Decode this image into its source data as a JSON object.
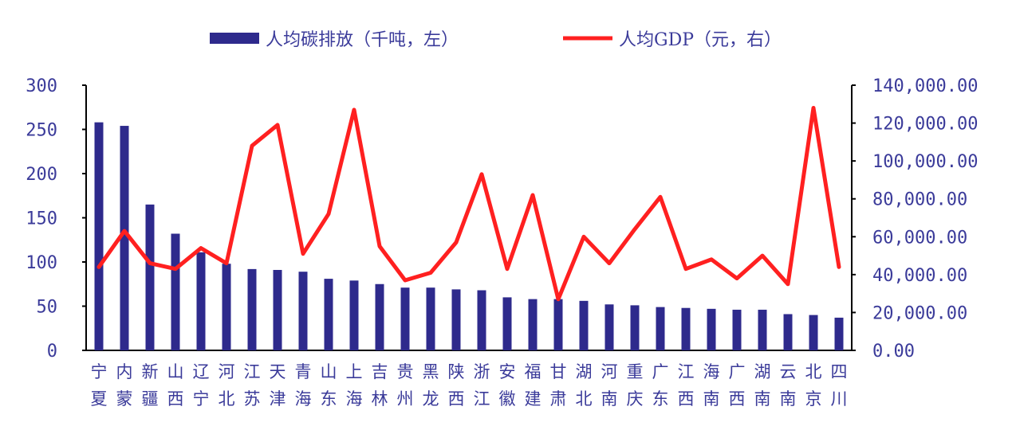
{
  "chart_data": {
    "type": "bar+line",
    "legend": {
      "position": "top",
      "bar_label": "人均碳排放（千吨，左）",
      "line_label": "人均GDP（元，右）"
    },
    "categories": [
      "宁夏",
      "内蒙",
      "新疆",
      "山西",
      "辽宁",
      "河北",
      "江苏",
      "天津",
      "青海",
      "山东",
      "上海",
      "吉林",
      "贵州",
      "黑龙",
      "陕西",
      "浙江",
      "安徽",
      "福建",
      "甘肃",
      "湖北",
      "河南",
      "重庆",
      "广东",
      "江西",
      "海南",
      "广西",
      "湖南",
      "云南",
      "北京",
      "四川"
    ],
    "series": [
      {
        "name": "人均碳排放（千吨，左）",
        "type": "bar",
        "axis": "left",
        "color": "#2e2a8c",
        "values": [
          258,
          254,
          165,
          132,
          111,
          98,
          92,
          91,
          89,
          81,
          79,
          75,
          71,
          71,
          69,
          68,
          60,
          58,
          58,
          56,
          52,
          51,
          49,
          48,
          47,
          46,
          46,
          41,
          40,
          37
        ]
      },
      {
        "name": "人均GDP（元，右）",
        "type": "line",
        "axis": "right",
        "color": "#ff2020",
        "values": [
          44000,
          63000,
          46000,
          43000,
          54000,
          46000,
          108000,
          119000,
          51000,
          72000,
          127000,
          55000,
          37000,
          41000,
          57000,
          93000,
          43000,
          82000,
          27000,
          60000,
          46000,
          64000,
          81000,
          43000,
          48000,
          38000,
          50000,
          35000,
          128000,
          44000
        ]
      }
    ],
    "y_left": {
      "lim": [
        0,
        300
      ],
      "ticks": [
        0,
        50,
        100,
        150,
        200,
        250,
        300
      ],
      "tick_labels": [
        "0",
        "50",
        "100",
        "150",
        "200",
        "250",
        "300"
      ]
    },
    "y_right": {
      "lim": [
        0,
        140000
      ],
      "ticks": [
        0,
        20000,
        40000,
        60000,
        80000,
        100000,
        120000,
        140000
      ],
      "tick_labels": [
        "0.00",
        "20,000.00",
        "40,000.00",
        "60,000.00",
        "80,000.00",
        "100,000.00",
        "120,000.00",
        "140,000.00"
      ]
    },
    "grid": false,
    "axis_color": "#000000",
    "text_color": "#3b3b9a"
  }
}
